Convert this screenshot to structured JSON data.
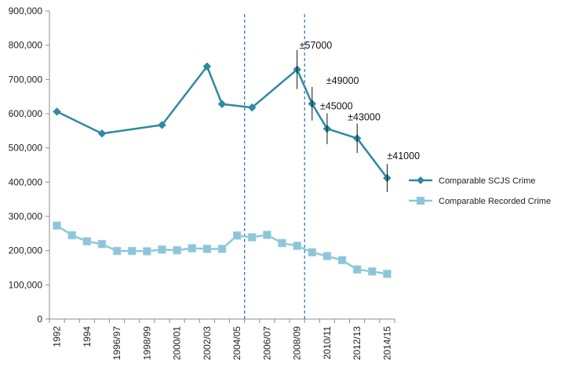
{
  "chart_data": {
    "type": "line",
    "x": [
      "1992",
      "1993",
      "1994",
      "1995",
      "1996/97",
      "1997/98",
      "1998/99",
      "1999/00",
      "2000/01",
      "2001/02",
      "2002/03",
      "2003/04",
      "2004/05",
      "2005/06",
      "2006/07",
      "2007/08",
      "2008/09",
      "2009/10",
      "2010/11",
      "2011/12",
      "2012/13",
      "2013/14",
      "2014/15"
    ],
    "x_tick_labels": [
      "1992",
      "1994",
      "1996/97",
      "1998/99",
      "2000/01",
      "2002/03",
      "2004/05",
      "2006/07",
      "2008/09",
      "2010/11",
      "2012/13",
      "2014/15"
    ],
    "y_tick_labels": [
      "0",
      "100,000",
      "200,000",
      "300,000",
      "400,000",
      "500,000",
      "600,000",
      "700,000",
      "800,000",
      "900,000"
    ],
    "ylim": [
      0,
      900000
    ],
    "series": [
      {
        "name": "Comparable SCJS Crime",
        "color": "#2e8aa0",
        "marker": "diamond",
        "points": [
          {
            "x": "1992",
            "y": 606000
          },
          {
            "x": "1995",
            "y": 542000
          },
          {
            "x": "1999/00",
            "y": 567000
          },
          {
            "x": "2002/03",
            "y": 738000
          },
          {
            "x": "2003/04",
            "y": 628000
          },
          {
            "x": "2005/06",
            "y": 618000
          },
          {
            "x": "2008/09",
            "y": 729000
          },
          {
            "x": "2009/10",
            "y": 629000
          },
          {
            "x": "2010/11",
            "y": 556000
          },
          {
            "x": "2012/13",
            "y": 528000
          },
          {
            "x": "2014/15",
            "y": 412000
          }
        ],
        "error_bars": [
          {
            "x": "2008/09",
            "y": 729000,
            "err": 57000,
            "label": "±57000"
          },
          {
            "x": "2009/10",
            "y": 629000,
            "err": 49000,
            "label": "±49000"
          },
          {
            "x": "2010/11",
            "y": 556000,
            "err": 45000,
            "label": "±45000"
          },
          {
            "x": "2012/13",
            "y": 528000,
            "err": 43000,
            "label": "±43000"
          },
          {
            "x": "2014/15",
            "y": 412000,
            "err": 41000,
            "label": "±41000"
          }
        ]
      },
      {
        "name": "Comparable Recorded Crime",
        "color": "#8ec6d9",
        "marker": "square",
        "points": [
          {
            "x": "1992",
            "y": 273000
          },
          {
            "x": "1993",
            "y": 245000
          },
          {
            "x": "1994",
            "y": 227000
          },
          {
            "x": "1995",
            "y": 219000
          },
          {
            "x": "1996/97",
            "y": 199000
          },
          {
            "x": "1997/98",
            "y": 199000
          },
          {
            "x": "1998/99",
            "y": 198000
          },
          {
            "x": "1999/00",
            "y": 203000
          },
          {
            "x": "2000/01",
            "y": 201000
          },
          {
            "x": "2001/02",
            "y": 207000
          },
          {
            "x": "2002/03",
            "y": 205000
          },
          {
            "x": "2003/04",
            "y": 205000
          },
          {
            "x": "2004/05",
            "y": 244000
          },
          {
            "x": "2005/06",
            "y": 239000
          },
          {
            "x": "2006/07",
            "y": 246000
          },
          {
            "x": "2007/08",
            "y": 222000
          },
          {
            "x": "2008/09",
            "y": 214000
          },
          {
            "x": "2009/10",
            "y": 195000
          },
          {
            "x": "2010/11",
            "y": 184000
          },
          {
            "x": "2011/12",
            "y": 172000
          },
          {
            "x": "2012/13",
            "y": 145000
          },
          {
            "x": "2013/14",
            "y": 139000
          },
          {
            "x": "2014/15",
            "y": 132000
          }
        ]
      }
    ],
    "reference_lines": [
      {
        "x_between": [
          "2004/05",
          "2005/06"
        ],
        "style": "dashed",
        "color": "#2e6fb8"
      },
      {
        "x_between": [
          "2008/09",
          "2009/10"
        ],
        "style": "dashed",
        "color": "#2e6fb8"
      }
    ],
    "legend_position": "right",
    "grid": false
  }
}
